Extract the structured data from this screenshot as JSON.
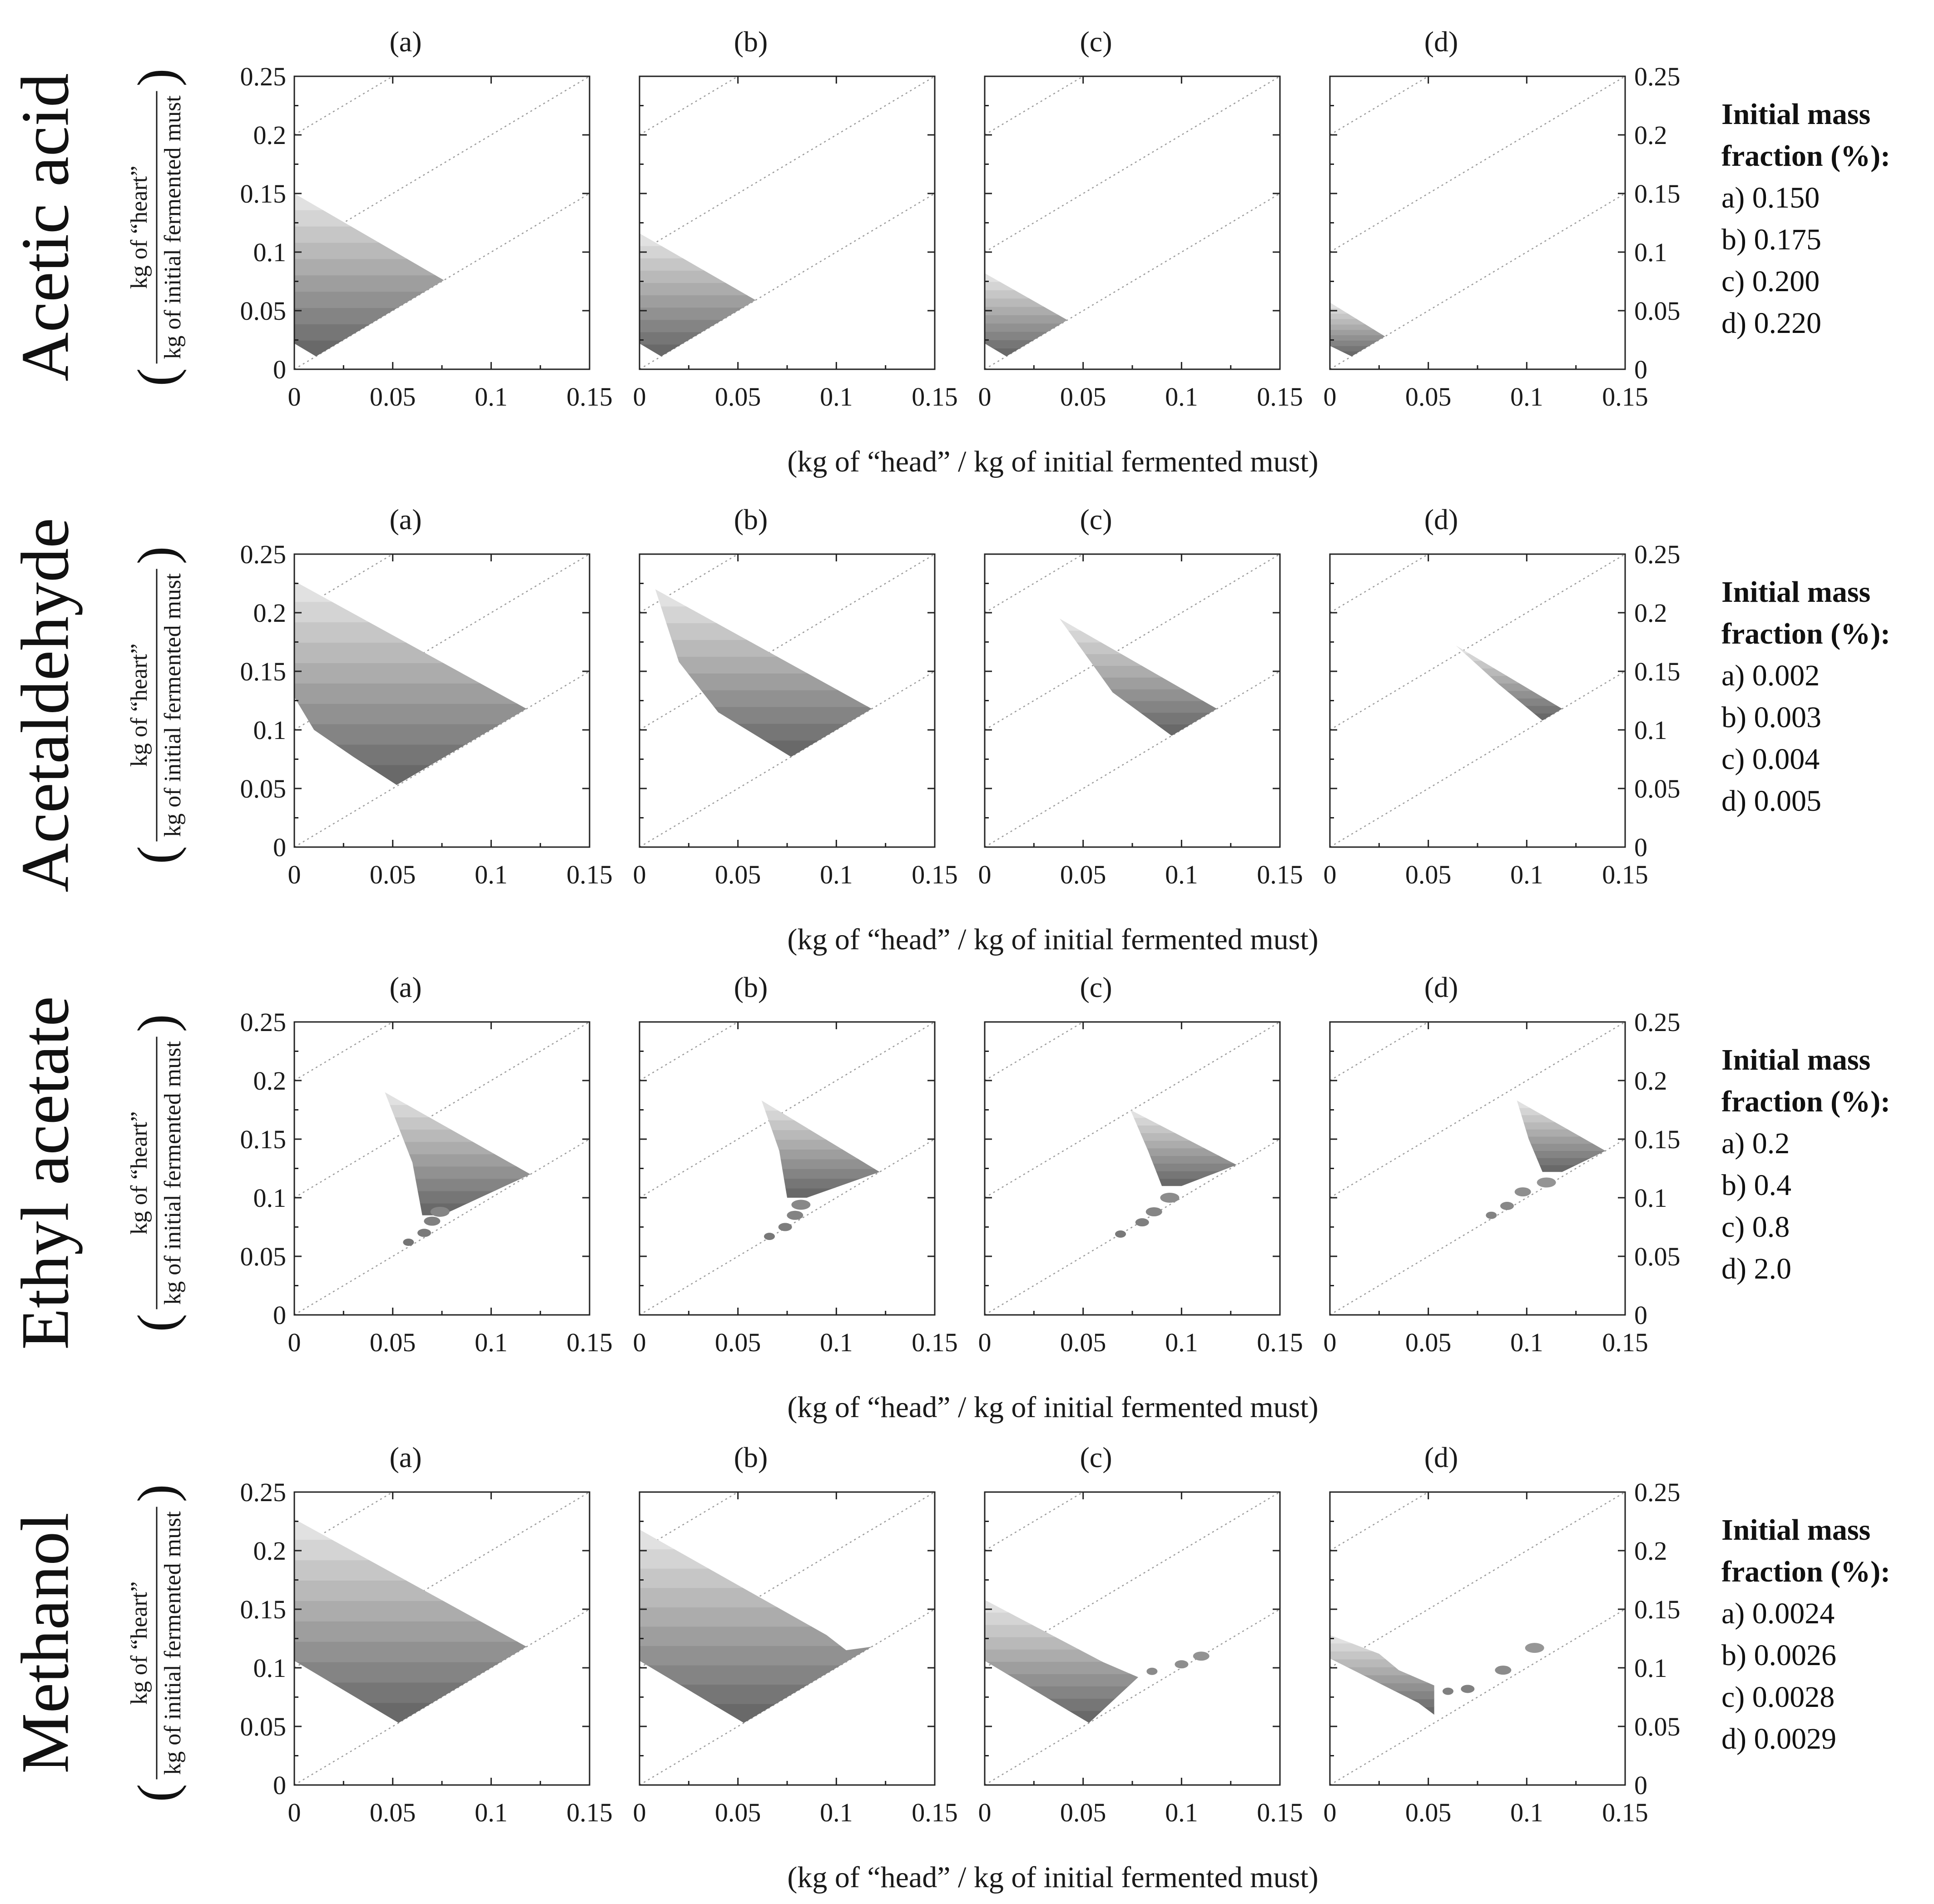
{
  "figure": {
    "xlabel": "(kg of “head” / kg of initial fermented must)",
    "ylabel_numerator": "kg of “heart”",
    "ylabel_denominator": "kg of initial fermented must",
    "panel_labels": [
      "(a)",
      "(b)",
      "(c)",
      "(d)"
    ],
    "legend_title_line1": "Initial mass",
    "legend_title_line2": "fraction (%):"
  },
  "chart_data": [
    {
      "type": "area",
      "compound": "Acetic acid",
      "xlim": [
        0,
        0.15
      ],
      "ylim": [
        0,
        0.25
      ],
      "xticks": [
        "0",
        "0.05",
        "0.1",
        "0.15"
      ],
      "yticks": [
        "0",
        "0.05",
        "0.1",
        "0.15",
        "0.2",
        "0.25"
      ],
      "guide_lines_intercepts": [
        0,
        0.1,
        0.2
      ],
      "legend": [
        "a) 0.150",
        "b) 0.175",
        "c) 0.200",
        "d) 0.220"
      ],
      "panels": [
        {
          "label": "(a)",
          "region": [
            [
              0,
              0.15
            ],
            [
              0.076,
              0.076
            ],
            [
              0.011,
              0.011
            ],
            [
              0,
              0.022
            ]
          ]
        },
        {
          "label": "(b)",
          "region": [
            [
              0,
              0.116
            ],
            [
              0.059,
              0.059
            ],
            [
              0.011,
              0.011
            ],
            [
              0,
              0.022
            ]
          ]
        },
        {
          "label": "(c)",
          "region": [
            [
              0,
              0.082
            ],
            [
              0.042,
              0.042
            ],
            [
              0.011,
              0.011
            ],
            [
              0,
              0.022
            ]
          ]
        },
        {
          "label": "(d)",
          "region": [
            [
              0,
              0.057
            ],
            [
              0.028,
              0.028
            ],
            [
              0.011,
              0.011
            ],
            [
              0,
              0.02
            ]
          ]
        }
      ]
    },
    {
      "type": "area",
      "compound": "Acetaldehyde",
      "xlim": [
        0,
        0.15
      ],
      "ylim": [
        0,
        0.25
      ],
      "xticks": [
        "0",
        "0.05",
        "0.1",
        "0.15"
      ],
      "yticks": [
        "0",
        "0.05",
        "0.1",
        "0.15",
        "0.2",
        "0.25"
      ],
      "guide_lines_intercepts": [
        0,
        0.1,
        0.2
      ],
      "legend": [
        "a) 0.002",
        "b) 0.003",
        "c) 0.004",
        "d) 0.005"
      ],
      "panels": [
        {
          "label": "(a)",
          "region": [
            [
              0,
              0.227
            ],
            [
              0.118,
              0.118
            ],
            [
              0.052,
              0.053
            ],
            [
              0.03,
              0.077
            ],
            [
              0.01,
              0.1
            ],
            [
              0,
              0.128
            ]
          ]
        },
        {
          "label": "(b)",
          "region": [
            [
              0.008,
              0.22
            ],
            [
              0.118,
              0.118
            ],
            [
              0.077,
              0.077
            ],
            [
              0.04,
              0.115
            ],
            [
              0.02,
              0.158
            ],
            [
              0.008,
              0.22
            ]
          ]
        },
        {
          "label": "(c)",
          "region": [
            [
              0.038,
              0.195
            ],
            [
              0.118,
              0.118
            ],
            [
              0.095,
              0.095
            ],
            [
              0.065,
              0.132
            ],
            [
              0.038,
              0.195
            ]
          ]
        },
        {
          "label": "(d)",
          "region": [
            [
              0.064,
              0.172
            ],
            [
              0.118,
              0.118
            ],
            [
              0.108,
              0.108
            ],
            [
              0.085,
              0.14
            ],
            [
              0.064,
              0.172
            ]
          ]
        }
      ]
    },
    {
      "type": "area",
      "compound": "Ethyl acetate",
      "xlim": [
        0,
        0.15
      ],
      "ylim": [
        0,
        0.25
      ],
      "xticks": [
        "0",
        "0.05",
        "0.1",
        "0.15"
      ],
      "yticks": [
        "0",
        "0.05",
        "0.1",
        "0.15",
        "0.2",
        "0.25"
      ],
      "guide_lines_intercepts": [
        0,
        0.1,
        0.2
      ],
      "legend": [
        "a) 0.2",
        "b) 0.4",
        "c) 0.8",
        "d) 2.0"
      ],
      "panels": [
        {
          "label": "(a)",
          "region": [
            [
              0.046,
              0.19
            ],
            [
              0.12,
              0.12
            ],
            [
              0.075,
              0.085
            ],
            [
              0.065,
              0.085
            ],
            [
              0.06,
              0.13
            ],
            [
              0.046,
              0.19
            ]
          ],
          "blobs": [
            [
              0.058,
              0.062
            ],
            [
              0.066,
              0.07
            ],
            [
              0.07,
              0.08
            ],
            [
              0.074,
              0.088
            ]
          ]
        },
        {
          "label": "(b)",
          "region": [
            [
              0.062,
              0.183
            ],
            [
              0.122,
              0.122
            ],
            [
              0.085,
              0.1
            ],
            [
              0.075,
              0.1
            ],
            [
              0.071,
              0.14
            ],
            [
              0.062,
              0.183
            ]
          ],
          "blobs": [
            [
              0.066,
              0.067
            ],
            [
              0.074,
              0.075
            ],
            [
              0.079,
              0.085
            ],
            [
              0.082,
              0.094
            ]
          ]
        },
        {
          "label": "(c)",
          "region": [
            [
              0.074,
              0.175
            ],
            [
              0.128,
              0.128
            ],
            [
              0.1,
              0.11
            ],
            [
              0.09,
              0.11
            ],
            [
              0.083,
              0.14
            ],
            [
              0.074,
              0.175
            ]
          ],
          "blobs": [
            [
              0.069,
              0.069
            ],
            [
              0.08,
              0.079
            ],
            [
              0.086,
              0.088
            ],
            [
              0.094,
              0.1
            ]
          ]
        },
        {
          "label": "(d)",
          "region": [
            [
              0.095,
              0.183
            ],
            [
              0.14,
              0.14
            ],
            [
              0.118,
              0.122
            ],
            [
              0.108,
              0.122
            ],
            [
              0.101,
              0.15
            ],
            [
              0.095,
              0.183
            ]
          ],
          "blobs": [
            [
              0.082,
              0.085
            ],
            [
              0.09,
              0.093
            ],
            [
              0.098,
              0.105
            ],
            [
              0.11,
              0.113
            ]
          ]
        }
      ]
    },
    {
      "type": "area",
      "compound": "Methanol",
      "xlim": [
        0,
        0.15
      ],
      "ylim": [
        0,
        0.25
      ],
      "xticks": [
        "0",
        "0.05",
        "0.1",
        "0.15"
      ],
      "yticks": [
        "0",
        "0.05",
        "0.1",
        "0.15",
        "0.2",
        "0.25"
      ],
      "guide_lines_intercepts": [
        0,
        0.1,
        0.2
      ],
      "legend": [
        "a) 0.0024",
        "b) 0.0026",
        "c) 0.0028",
        "d) 0.0029"
      ],
      "panels": [
        {
          "label": "(a)",
          "region": [
            [
              0,
              0.227
            ],
            [
              0.118,
              0.118
            ],
            [
              0.053,
              0.053
            ],
            [
              0,
              0.106
            ]
          ]
        },
        {
          "label": "(b)",
          "region": [
            [
              0,
              0.218
            ],
            [
              0.095,
              0.128
            ],
            [
              0.105,
              0.115
            ],
            [
              0.118,
              0.118
            ],
            [
              0.053,
              0.053
            ],
            [
              0,
              0.106
            ]
          ]
        },
        {
          "label": "(c)",
          "region": [
            [
              0,
              0.158
            ],
            [
              0.06,
              0.105
            ],
            [
              0.078,
              0.092
            ],
            [
              0.053,
              0.053
            ],
            [
              0,
              0.106
            ]
          ],
          "blobs": [
            [
              0.085,
              0.097
            ],
            [
              0.1,
              0.103
            ],
            [
              0.11,
              0.11
            ]
          ]
        },
        {
          "label": "(d)",
          "region": [
            [
              0,
              0.128
            ],
            [
              0.025,
              0.112
            ],
            [
              0.035,
              0.098
            ],
            [
              0.053,
              0.085
            ],
            [
              0.053,
              0.06
            ],
            [
              0.045,
              0.07
            ],
            [
              0,
              0.108
            ]
          ],
          "blobs": [
            [
              0.06,
              0.08
            ],
            [
              0.07,
              0.082
            ],
            [
              0.088,
              0.098
            ],
            [
              0.104,
              0.117
            ]
          ]
        }
      ]
    }
  ]
}
